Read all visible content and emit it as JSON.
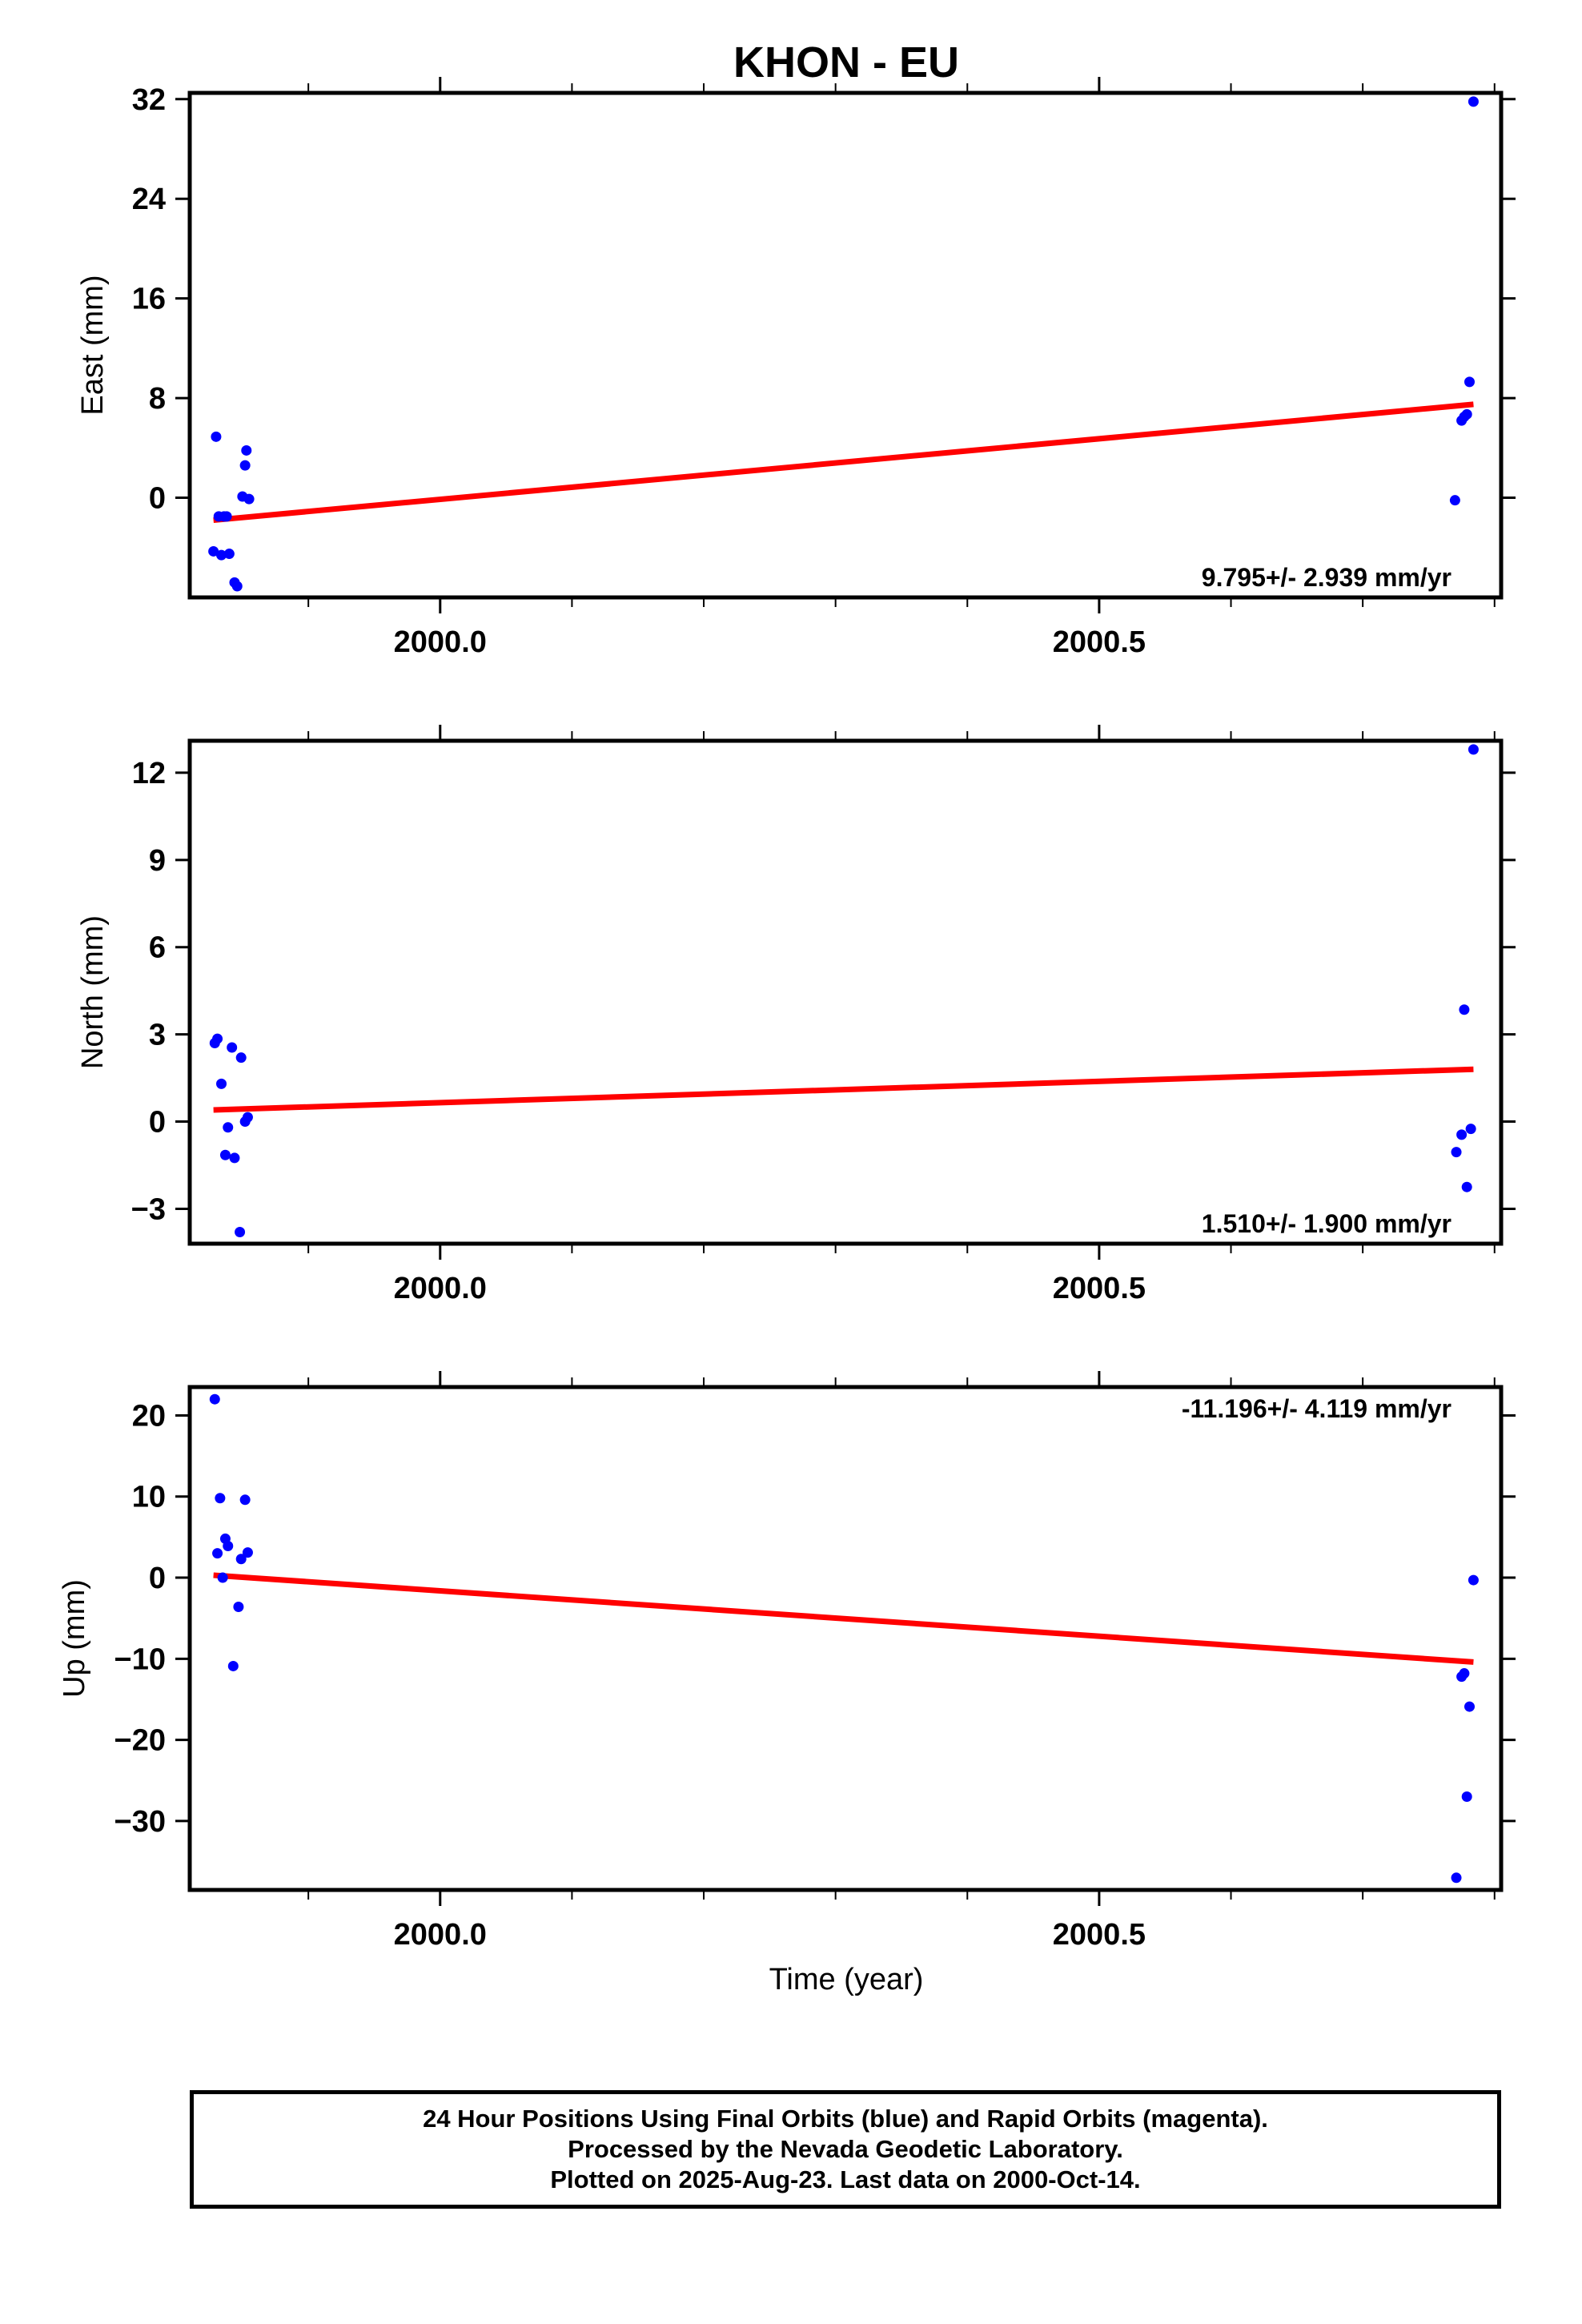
{
  "title": "KHON - EU",
  "xlabel": "Time (year)",
  "colors": {
    "final_orbits": "#0000ff",
    "trend_line": "#ff0000",
    "axis": "#000000"
  },
  "footer": {
    "line1": "24 Hour Positions Using Final Orbits (blue) and Rapid Orbits (magenta).",
    "line2": "Processed by the Nevada Geodetic Laboratory.",
    "line3": "Plotted on 2025-Aug-23. Last data on 2000-Oct-14."
  },
  "chart_data": [
    {
      "type": "scatter",
      "title": "KHON - EU",
      "ylabel": "East (mm)",
      "xlim": [
        1999.81,
        2000.805
      ],
      "ylim": [
        -8,
        32.5
      ],
      "xticks": [
        2000.0,
        2000.5
      ],
      "xtick_labels": [
        "2000.0",
        "2000.5"
      ],
      "yticks": [
        0,
        8,
        16,
        24,
        32
      ],
      "ytick_labels": [
        "0",
        "8",
        "16",
        "24",
        "32"
      ],
      "rate_label": "9.795+/- 2.939 mm/yr",
      "rate_position": "bottom-right",
      "series": [
        {
          "color": "#0000ff",
          "x": [
            1999.828,
            1999.83,
            1999.832,
            1999.834,
            1999.836,
            1999.838,
            1999.84,
            1999.844,
            1999.846,
            1999.85,
            1999.852,
            1999.853,
            1999.855,
            2000.77,
            2000.775,
            2000.777,
            2000.779,
            2000.781,
            2000.784
          ],
          "y": [
            -4.3,
            4.9,
            -1.5,
            -4.6,
            -1.5,
            -1.5,
            -4.5,
            -6.8,
            -7.1,
            0.1,
            2.6,
            3.8,
            -0.1,
            -0.2,
            6.2,
            6.5,
            6.7,
            9.3,
            31.8
          ]
        }
      ],
      "trend": {
        "x": [
          1999.828,
          2000.784
        ],
        "y": [
          -1.8,
          7.5
        ]
      }
    },
    {
      "type": "scatter",
      "ylabel": "North (mm)",
      "xlim": [
        1999.81,
        2000.805
      ],
      "ylim": [
        -4.2,
        13.1
      ],
      "xticks": [
        2000.0,
        2000.5
      ],
      "xtick_labels": [
        "2000.0",
        "2000.5"
      ],
      "yticks": [
        -3,
        0,
        3,
        6,
        9,
        12
      ],
      "ytick_labels": [
        "−3",
        "0",
        "3",
        "6",
        "9",
        "12"
      ],
      "rate_label": "1.510+/- 1.900 mm/yr",
      "rate_position": "bottom-right",
      "series": [
        {
          "color": "#0000ff",
          "x": [
            1999.829,
            1999.831,
            1999.834,
            1999.837,
            1999.839,
            1999.842,
            1999.844,
            1999.848,
            1999.849,
            1999.852,
            1999.854,
            2000.771,
            2000.775,
            2000.777,
            2000.779,
            2000.782,
            2000.784
          ],
          "y": [
            2.7,
            2.85,
            1.3,
            -1.15,
            -0.2,
            2.55,
            -1.25,
            -3.8,
            2.2,
            0.0,
            0.15,
            -1.05,
            -0.45,
            3.85,
            -2.25,
            -0.25,
            12.8
          ]
        }
      ],
      "trend": {
        "x": [
          1999.828,
          2000.784
        ],
        "y": [
          0.4,
          1.8
        ]
      }
    },
    {
      "type": "scatter",
      "ylabel": "Up (mm)",
      "xlim": [
        1999.81,
        2000.805
      ],
      "ylim": [
        -38.5,
        23.5
      ],
      "xticks": [
        2000.0,
        2000.5
      ],
      "xtick_labels": [
        "2000.0",
        "2000.5"
      ],
      "yticks": [
        -30,
        -20,
        -10,
        0,
        10,
        20
      ],
      "ytick_labels": [
        "−30",
        "−20",
        "−10",
        "0",
        "10",
        "20"
      ],
      "rate_label": "-11.196+/- 4.119 mm/yr",
      "rate_position": "top-right",
      "series": [
        {
          "color": "#0000ff",
          "x": [
            1999.829,
            1999.831,
            1999.833,
            1999.835,
            1999.837,
            1999.839,
            1999.843,
            1999.847,
            1999.849,
            1999.852,
            1999.854,
            2000.771,
            2000.775,
            2000.777,
            2000.779,
            2000.781,
            2000.784
          ],
          "y": [
            22.0,
            3.0,
            9.8,
            0.0,
            4.8,
            3.9,
            -10.9,
            -3.6,
            2.3,
            9.6,
            3.1,
            -37.0,
            -12.2,
            -11.8,
            -27.0,
            -15.9,
            -0.3
          ]
        }
      ],
      "trend": {
        "x": [
          1999.828,
          2000.784
        ],
        "y": [
          0.3,
          -10.4
        ]
      }
    }
  ]
}
